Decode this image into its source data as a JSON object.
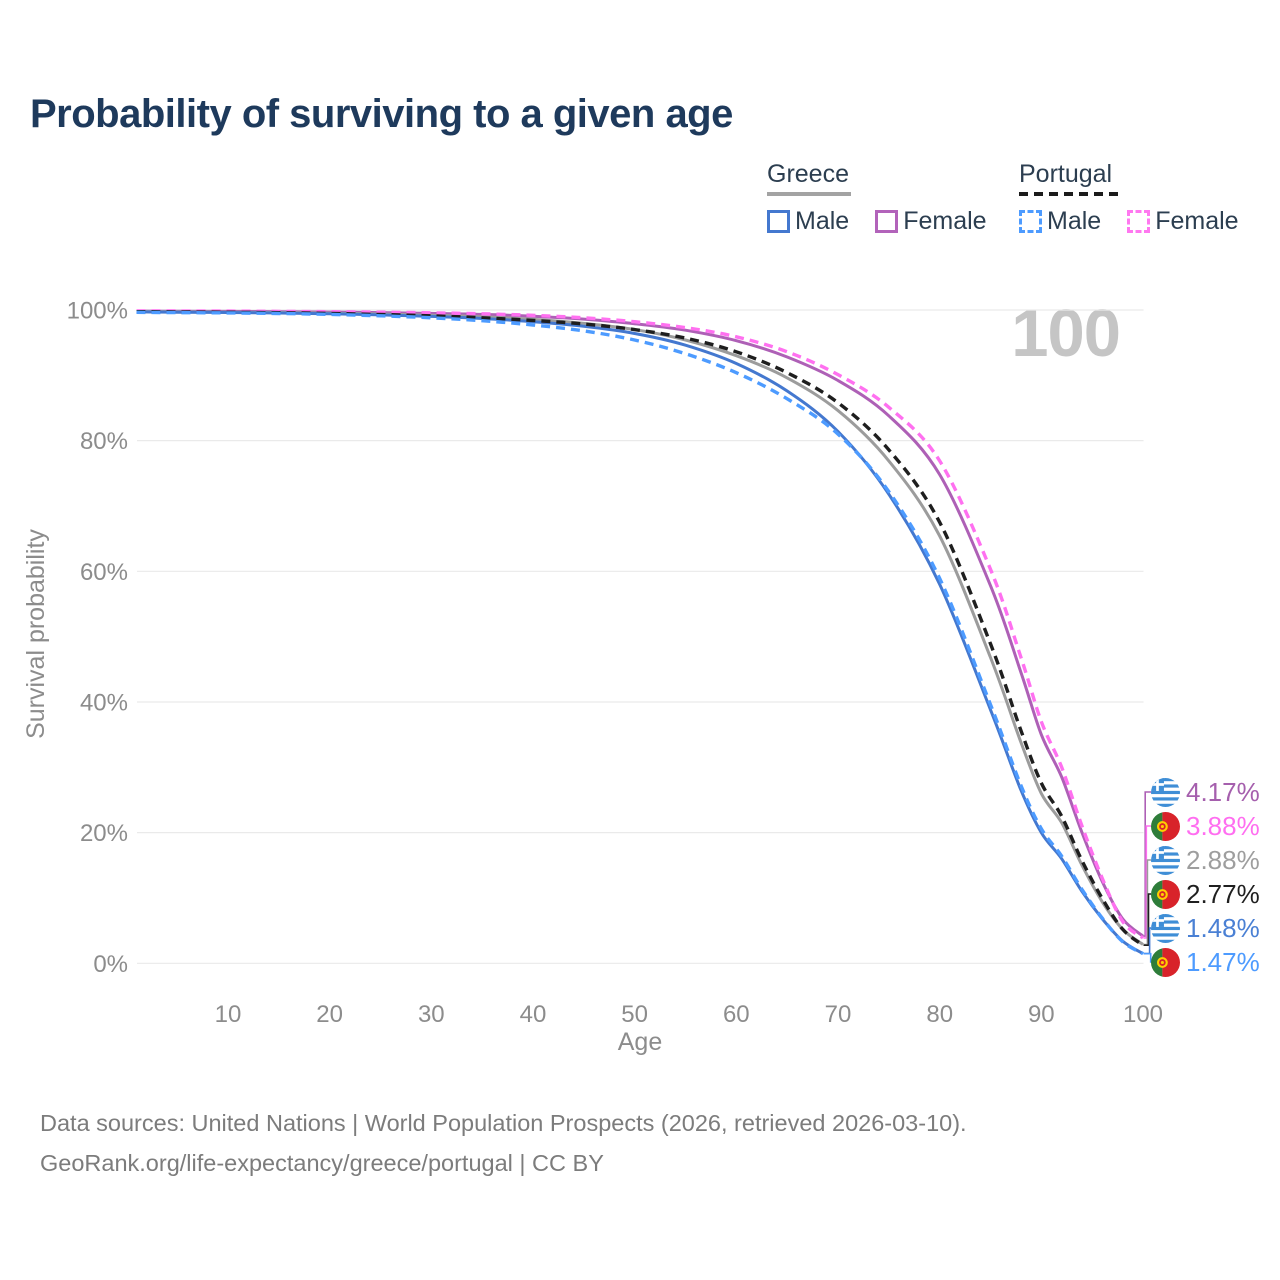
{
  "title": "Probability of surviving to a given age",
  "watermark_age": "100",
  "legend": {
    "greece": {
      "label": "Greece",
      "male": "Male",
      "female": "Female"
    },
    "portugal": {
      "label": "Portugal",
      "male": "Male",
      "female": "Female"
    }
  },
  "footer": {
    "line1": "Data sources: United Nations | World Population Prospects (2026, retrieved 2026-03-10).",
    "line2": "GeoRank.org/life-expectancy/greece/portugal | CC BY"
  },
  "chart_data": {
    "type": "line",
    "title": "Probability of surviving to a given age",
    "xlabel": "Age",
    "ylabel": "Survival probability",
    "xlim": [
      0,
      100
    ],
    "ylim": [
      0,
      100
    ],
    "grid": "horizontal",
    "legend_position": "top-right",
    "x_ticks": [
      {
        "value": 10,
        "label": "10"
      },
      {
        "value": 20,
        "label": "20"
      },
      {
        "value": 30,
        "label": "30"
      },
      {
        "value": 40,
        "label": "40"
      },
      {
        "value": 50,
        "label": "50"
      },
      {
        "value": 60,
        "label": "60"
      },
      {
        "value": 70,
        "label": "70"
      },
      {
        "value": 80,
        "label": "80"
      },
      {
        "value": 90,
        "label": "90"
      },
      {
        "value": 100,
        "label": "100"
      }
    ],
    "y_ticks": [
      {
        "value": 0,
        "label": "0%"
      },
      {
        "value": 20,
        "label": "20%"
      },
      {
        "value": 40,
        "label": "40%"
      },
      {
        "value": 60,
        "label": "60%"
      },
      {
        "value": 80,
        "label": "80%"
      },
      {
        "value": 100,
        "label": "100%"
      }
    ],
    "ages": [
      1,
      5,
      10,
      15,
      20,
      25,
      30,
      35,
      40,
      45,
      50,
      55,
      60,
      65,
      70,
      75,
      80,
      85,
      88,
      90,
      92,
      94,
      96,
      98,
      100
    ],
    "series": [
      {
        "id": "greece-female",
        "name": "Greece Female",
        "country": "Greece",
        "sex": "Female",
        "style": "solid",
        "color": "#ae60b6",
        "flag": "greece",
        "end_label": "4.17%",
        "end_label_color": "#a55fad",
        "values": [
          99.82,
          99.8,
          99.78,
          99.74,
          99.68,
          99.6,
          99.48,
          99.32,
          99.05,
          98.6,
          97.9,
          96.9,
          95.3,
          92.8,
          89.2,
          83.8,
          74.8,
          57.8,
          44.5,
          35.0,
          28.5,
          20.0,
          12.5,
          6.8,
          4.17
        ]
      },
      {
        "id": "portugal-female",
        "name": "Portugal Female",
        "country": "Portugal",
        "sex": "Female",
        "style": "dashed",
        "color": "#ff70f0",
        "flag": "portugal",
        "end_label": "3.88%",
        "end_label_color": "#ff6ef0",
        "values": [
          99.86,
          99.84,
          99.82,
          99.78,
          99.73,
          99.66,
          99.56,
          99.42,
          99.18,
          98.8,
          98.2,
          97.3,
          95.9,
          93.6,
          90.1,
          85.1,
          76.9,
          60.3,
          46.8,
          37.0,
          30.0,
          21.0,
          13.0,
          6.4,
          3.88
        ]
      },
      {
        "id": "greece-total",
        "name": "Greece (both sexes)",
        "country": "Greece",
        "sex": "Total",
        "style": "solid",
        "color": "#9c9c9c",
        "flag": "greece",
        "end_label": "2.88%",
        "end_label_color": "#9e9e9e",
        "values": [
          99.76,
          99.73,
          99.68,
          99.62,
          99.52,
          99.38,
          99.2,
          98.95,
          98.55,
          97.95,
          97.0,
          95.4,
          93.0,
          89.6,
          84.6,
          76.9,
          65.4,
          46.8,
          33.8,
          26.0,
          21.5,
          15.0,
          9.4,
          5.2,
          2.88
        ]
      },
      {
        "id": "portugal-total",
        "name": "Portugal (both sexes)",
        "country": "Portugal",
        "sex": "Total",
        "style": "dashed",
        "color": "#1e1e1e",
        "flag": "portugal",
        "end_label": "2.77%",
        "end_label_color": "#1f1f1f",
        "values": [
          99.74,
          99.7,
          99.66,
          99.58,
          99.47,
          99.31,
          99.1,
          98.8,
          98.4,
          97.85,
          97.0,
          95.7,
          93.6,
          90.4,
          85.8,
          78.6,
          67.5,
          48.9,
          35.6,
          27.6,
          22.5,
          15.7,
          9.9,
          5.2,
          2.77
        ]
      },
      {
        "id": "greece-male",
        "name": "Greece Male",
        "country": "Greece",
        "sex": "Male",
        "style": "solid",
        "color": "#4478cf",
        "flag": "greece",
        "end_label": "1.48%",
        "end_label_color": "#4a80d4",
        "values": [
          99.7,
          99.66,
          99.62,
          99.54,
          99.42,
          99.24,
          99.02,
          98.7,
          98.2,
          97.5,
          96.4,
          94.6,
          91.8,
          87.6,
          81.4,
          71.8,
          58.0,
          38.8,
          26.5,
          20.0,
          16.0,
          11.0,
          6.8,
          3.4,
          1.48
        ]
      },
      {
        "id": "portugal-male",
        "name": "Portugal Male",
        "country": "Portugal",
        "sex": "Male",
        "style": "dashed",
        "color": "#4d9bff",
        "flag": "portugal",
        "end_label": "1.47%",
        "end_label_color": "#4d9bff",
        "values": [
          99.64,
          99.6,
          99.55,
          99.46,
          99.32,
          99.1,
          98.8,
          98.35,
          97.7,
          96.8,
          95.4,
          93.3,
          90.4,
          86.4,
          81.0,
          72.2,
          58.9,
          39.6,
          27.2,
          20.6,
          16.4,
          11.3,
          6.9,
          3.3,
          1.47
        ]
      }
    ]
  }
}
